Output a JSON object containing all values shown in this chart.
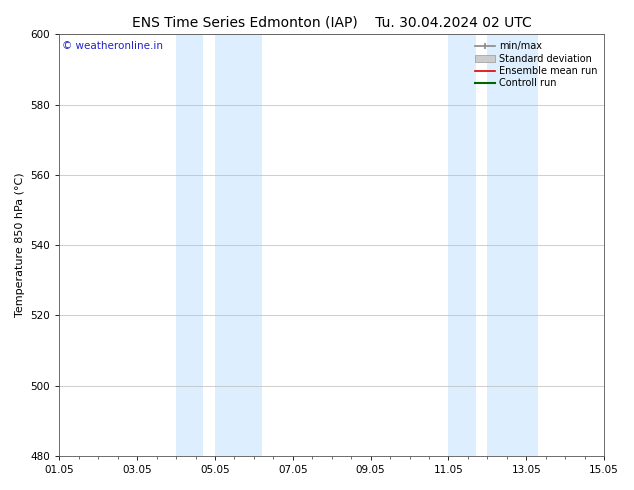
{
  "title": "ENS Time Series Edmonton (IAP)",
  "title2": "Tu. 30.04.2024 02 UTC",
  "ylabel": "Temperature 850 hPa (°C)",
  "ylim": [
    480,
    600
  ],
  "yticks": [
    480,
    500,
    520,
    540,
    560,
    580,
    600
  ],
  "xlim": [
    0,
    14
  ],
  "xtick_labels": [
    "01.05",
    "03.05",
    "05.05",
    "07.05",
    "09.05",
    "11.05",
    "13.05",
    "15.05"
  ],
  "xtick_positions": [
    0,
    2,
    4,
    6,
    8,
    10,
    12,
    14
  ],
  "shaded_bands": [
    {
      "x_start": 3.0,
      "x_end": 3.7
    },
    {
      "x_start": 4.0,
      "x_end": 5.2
    },
    {
      "x_start": 10.0,
      "x_end": 10.7
    },
    {
      "x_start": 11.0,
      "x_end": 12.3
    }
  ],
  "shade_color": "#ddeeff",
  "watermark_text": "© weatheronline.in",
  "watermark_color": "#2222cc",
  "legend_entries": [
    {
      "label": "min/max",
      "color": "#888888",
      "lw": 1.2,
      "type": "line_cap"
    },
    {
      "label": "Standard deviation",
      "color": "#cccccc",
      "lw": 7,
      "type": "bar"
    },
    {
      "label": "Ensemble mean run",
      "color": "#dd0000",
      "lw": 1.2,
      "type": "line"
    },
    {
      "label": "Controll run",
      "color": "#006600",
      "lw": 1.5,
      "type": "line"
    }
  ],
  "background_color": "#ffffff",
  "plot_background": "#ffffff",
  "grid_color": "#bbbbbb",
  "title_fontsize": 10,
  "axis_fontsize": 8,
  "tick_fontsize": 7.5,
  "watermark_fontsize": 7.5,
  "legend_fontsize": 7
}
